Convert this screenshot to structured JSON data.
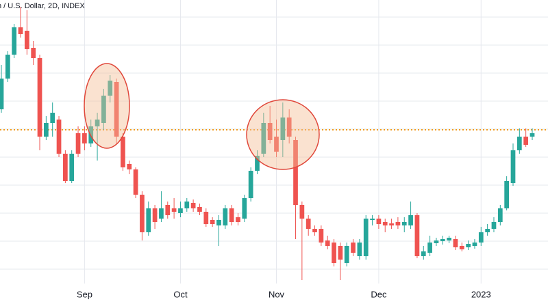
{
  "chart_data": {
    "type": "candlestick",
    "title": "n / U.S. Dollar, 2D, INDEX",
    "categories": [
      null,
      null,
      null,
      null,
      null,
      null,
      null,
      null,
      null,
      null,
      null,
      null,
      null,
      "Sep",
      null,
      null,
      null,
      null,
      null,
      null,
      null,
      null,
      null,
      null,
      null,
      null,
      null,
      null,
      "Oct",
      null,
      null,
      null,
      null,
      null,
      null,
      null,
      null,
      null,
      null,
      null,
      null,
      null,
      null,
      "Nov",
      null,
      null,
      null,
      null,
      null,
      null,
      null,
      null,
      null,
      null,
      null,
      null,
      null,
      null,
      null,
      "Dec",
      null,
      null,
      null,
      null,
      null,
      null,
      null,
      null,
      null,
      null,
      null,
      null,
      null,
      null,
      null,
      "2023",
      null,
      null,
      null,
      null,
      null,
      null,
      null,
      null
    ],
    "open": [
      285,
      330,
      365,
      405,
      400,
      375,
      360,
      245,
      265,
      270,
      220,
      180,
      250,
      250,
      235,
      260,
      265,
      305,
      325,
      245,
      205,
      197,
      160,
      105,
      140,
      125,
      145,
      140,
      133,
      140,
      148,
      142,
      135,
      123,
      115,
      115,
      140,
      127,
      125,
      155,
      195,
      220,
      265,
      245,
      240,
      273,
      240,
      145,
      125,
      110,
      110,
      93,
      90,
      85,
      60,
      90,
      70,
      70,
      123,
      125,
      120,
      118,
      120,
      115,
      115,
      130,
      70,
      75,
      89,
      92,
      93,
      95,
      85,
      83,
      85,
      90,
      105,
      110,
      120,
      140,
      177,
      225,
      245,
      245
    ],
    "high": [
      350,
      370,
      410,
      435,
      430,
      385,
      365,
      275,
      295,
      275,
      225,
      225,
      260,
      260,
      270,
      280,
      315,
      335,
      330,
      250,
      210,
      200,
      165,
      150,
      145,
      165,
      150,
      155,
      150,
      155,
      153,
      147,
      140,
      127,
      130,
      145,
      145,
      133,
      160,
      200,
      225,
      280,
      290,
      270,
      295,
      285,
      245,
      150,
      130,
      115,
      115,
      100,
      95,
      90,
      90,
      95,
      95,
      130,
      130,
      130,
      125,
      125,
      127,
      127,
      150,
      133,
      85,
      100,
      97,
      100,
      100,
      100,
      90,
      93,
      95,
      113,
      117,
      127,
      145,
      187,
      235,
      257,
      257,
      257
    ],
    "low": [
      280,
      325,
      360,
      390,
      365,
      350,
      225,
      240,
      245,
      215,
      177,
      177,
      215,
      225,
      230,
      210,
      255,
      295,
      235,
      195,
      190,
      155,
      93,
      100,
      110,
      120,
      125,
      125,
      127,
      135,
      135,
      130,
      113,
      113,
      85,
      110,
      115,
      115,
      120,
      150,
      190,
      215,
      235,
      215,
      215,
      235,
      95,
      35,
      100,
      100,
      85,
      80,
      55,
      35,
      55,
      70,
      65,
      65,
      115,
      110,
      105,
      110,
      110,
      105,
      110,
      67,
      65,
      70,
      85,
      87,
      89,
      79,
      77,
      79,
      81,
      85,
      100,
      105,
      115,
      137,
      173,
      220,
      230,
      240
    ],
    "close": [
      330,
      365,
      405,
      395,
      373,
      360,
      245,
      265,
      280,
      220,
      180,
      220,
      220,
      235,
      260,
      270,
      305,
      327,
      245,
      200,
      197,
      160,
      105,
      140,
      120,
      140,
      130,
      135,
      140,
      150,
      140,
      135,
      117,
      117,
      123,
      140,
      120,
      120,
      155,
      195,
      217,
      265,
      240,
      223,
      273,
      245,
      145,
      125,
      110,
      105,
      90,
      85,
      60,
      65,
      85,
      75,
      90,
      125,
      125,
      117,
      115,
      115,
      115,
      120,
      130,
      70,
      77,
      90,
      93,
      95,
      97,
      83,
      80,
      88,
      90,
      105,
      110,
      120,
      140,
      180,
      225,
      245,
      233,
      250
    ],
    "up_color": "#26a69a",
    "down_color": "#ef5350",
    "ylim": [
      30,
      445
    ],
    "level": {
      "value": 255,
      "color": "#f29b1d"
    }
  }
}
